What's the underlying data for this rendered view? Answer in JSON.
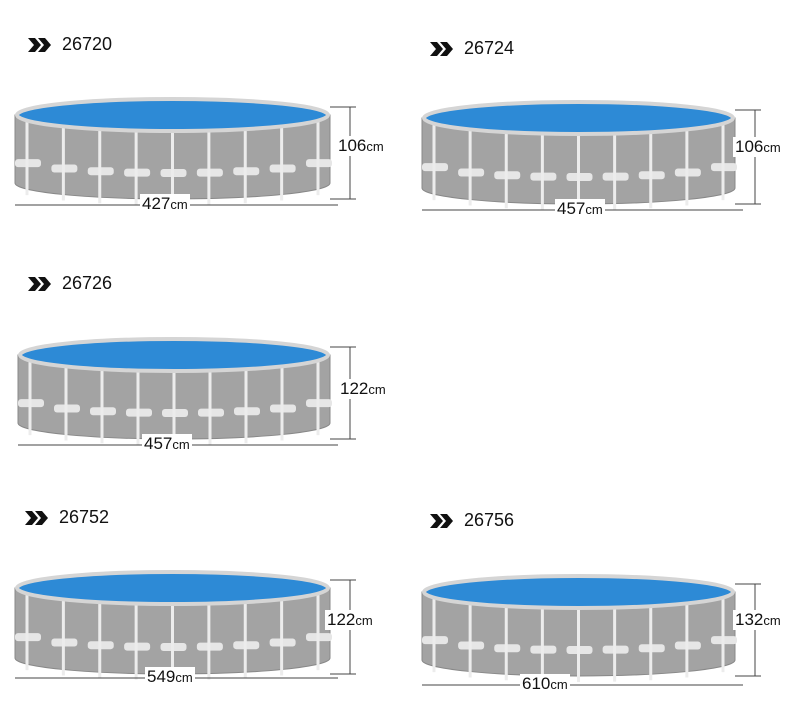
{
  "items": [
    {
      "model": "26720",
      "height": "106",
      "height_unit": "cm",
      "diameter": "427",
      "diameter_unit": "cm"
    },
    {
      "model": "26724",
      "height": "106",
      "height_unit": "cm",
      "diameter": "457",
      "diameter_unit": "cm"
    },
    {
      "model": "26726",
      "height": "122",
      "height_unit": "cm",
      "diameter": "457",
      "diameter_unit": "cm"
    },
    {
      "model": "26752",
      "height": "122",
      "height_unit": "cm",
      "diameter": "549",
      "diameter_unit": "cm"
    },
    {
      "model": "26756",
      "height": "132",
      "height_unit": "cm",
      "diameter": "610",
      "diameter_unit": "cm"
    }
  ]
}
